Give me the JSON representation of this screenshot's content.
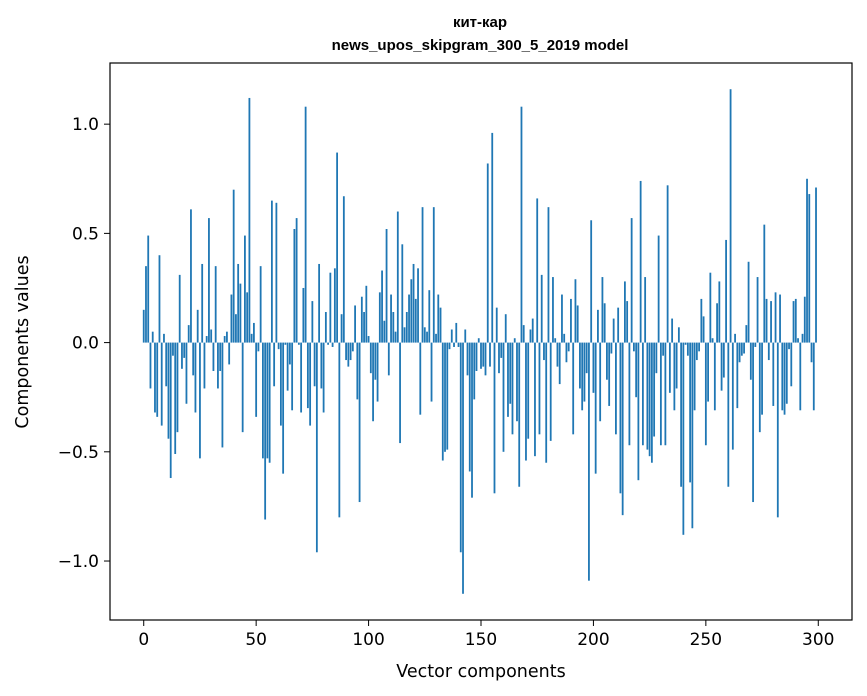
{
  "chart_data": {
    "type": "bar",
    "title": "кит-кар",
    "subtitle": "news_upos_skipgram_300_5_2019 model",
    "xlabel": "Vector components",
    "ylabel": "Components values",
    "xlim": [
      -15,
      315
    ],
    "ylim": [
      -1.27,
      1.28
    ],
    "xticks": [
      0,
      50,
      100,
      150,
      200,
      250,
      300
    ],
    "yticks": [
      1.0,
      0.5,
      0.0,
      -0.5,
      -1.0
    ],
    "xtick_labels": [
      "0",
      "50",
      "100",
      "150",
      "200",
      "250",
      "300"
    ],
    "ytick_labels": [
      "1.0",
      "0.5",
      "0.0",
      "−0.5",
      "−1.0"
    ],
    "grid": false,
    "color": "#1f77b4",
    "values": [
      0.15,
      0.35,
      0.49,
      -0.21,
      0.05,
      -0.32,
      -0.34,
      0.4,
      -0.38,
      0.04,
      -0.2,
      -0.44,
      -0.62,
      -0.06,
      -0.51,
      -0.41,
      0.31,
      -0.12,
      -0.07,
      -0.28,
      0.08,
      0.61,
      -0.15,
      -0.32,
      0.15,
      -0.53,
      0.36,
      -0.21,
      0.03,
      0.57,
      0.06,
      -0.13,
      0.35,
      -0.21,
      -0.13,
      -0.48,
      0.03,
      0.05,
      -0.1,
      0.22,
      0.7,
      0.13,
      0.36,
      0.27,
      -0.41,
      0.49,
      0.23,
      1.12,
      0.04,
      0.09,
      -0.34,
      -0.04,
      0.35,
      -0.53,
      -0.81,
      -0.53,
      -0.55,
      0.65,
      -0.2,
      0.64,
      -0.03,
      -0.38,
      -0.6,
      -0.01,
      -0.22,
      -0.1,
      -0.31,
      0.52,
      0.57,
      -0.01,
      -0.32,
      0.25,
      1.08,
      -0.3,
      -0.38,
      0.19,
      -0.2,
      -0.96,
      0.36,
      -0.21,
      -0.32,
      0.14,
      -0.01,
      0.32,
      -0.02,
      0.34,
      0.87,
      -0.8,
      0.13,
      0.67,
      -0.08,
      -0.11,
      -0.08,
      -0.04,
      0.17,
      -0.26,
      -0.73,
      0.21,
      0.14,
      0.26,
      0.03,
      -0.14,
      -0.36,
      -0.17,
      -0.27,
      0.23,
      0.33,
      0.1,
      0.52,
      -0.15,
      0.22,
      0.14,
      0.05,
      0.6,
      -0.46,
      0.45,
      0.07,
      0.14,
      0.22,
      0.29,
      0.36,
      0.2,
      0.34,
      -0.33,
      0.62,
      0.07,
      0.05,
      0.24,
      -0.27,
      0.62,
      0.04,
      0.22,
      0.16,
      -0.54,
      -0.5,
      -0.49,
      -0.03,
      0.06,
      -0.02,
      0.09,
      -0.02,
      -0.96,
      -1.15,
      0.06,
      -0.15,
      -0.59,
      -0.71,
      -0.26,
      -0.13,
      0.02,
      -0.12,
      -0.11,
      -0.15,
      0.82,
      -0.11,
      0.96,
      -0.69,
      0.16,
      -0.14,
      -0.07,
      -0.5,
      0.13,
      -0.34,
      -0.28,
      -0.42,
      0.02,
      -0.36,
      -0.66,
      1.08,
      0.08,
      -0.54,
      -0.44,
      0.06,
      0.11,
      -0.52,
      0.66,
      -0.42,
      0.31,
      -0.08,
      -0.55,
      0.62,
      -0.45,
      0.3,
      0.02,
      -0.11,
      -0.19,
      0.22,
      0.04,
      -0.09,
      -0.04,
      0.2,
      -0.42,
      0.29,
      0.17,
      -0.21,
      -0.31,
      -0.27,
      -0.14,
      -1.09,
      0.56,
      -0.23,
      -0.6,
      0.15,
      -0.36,
      0.3,
      0.18,
      -0.17,
      -0.29,
      -0.05,
      0.11,
      -0.42,
      0.16,
      -0.69,
      -0.79,
      0.28,
      0.19,
      -0.47,
      0.57,
      -0.04,
      -0.25,
      -0.63,
      0.74,
      -0.47,
      0.3,
      -0.49,
      -0.52,
      -0.55,
      -0.43,
      -0.14,
      0.49,
      -0.47,
      -0.06,
      -0.47,
      0.72,
      -0.23,
      0.11,
      -0.31,
      -0.21,
      0.07,
      -0.66,
      -0.88,
      -0.01,
      -0.06,
      -0.64,
      -0.85,
      -0.31,
      -0.08,
      -0.04,
      0.2,
      0.12,
      -0.47,
      -0.27,
      0.32,
      0.02,
      -0.31,
      0.18,
      0.28,
      -0.22,
      -0.16,
      0.47,
      -0.66,
      1.16,
      -0.49,
      0.04,
      -0.3,
      -0.09,
      -0.06,
      -0.05,
      0.08,
      0.37,
      -0.17,
      -0.73,
      -0.02,
      0.3,
      -0.41,
      -0.33,
      0.54,
      0.2,
      -0.08,
      0.19,
      -0.29,
      0.23,
      -0.8,
      0.22,
      -0.31,
      -0.33,
      -0.28,
      -0.03,
      -0.2,
      0.19,
      0.2,
      0.02,
      -0.31,
      0.04,
      0.21,
      0.75,
      0.68,
      -0.09,
      -0.31,
      0.71
    ]
  }
}
